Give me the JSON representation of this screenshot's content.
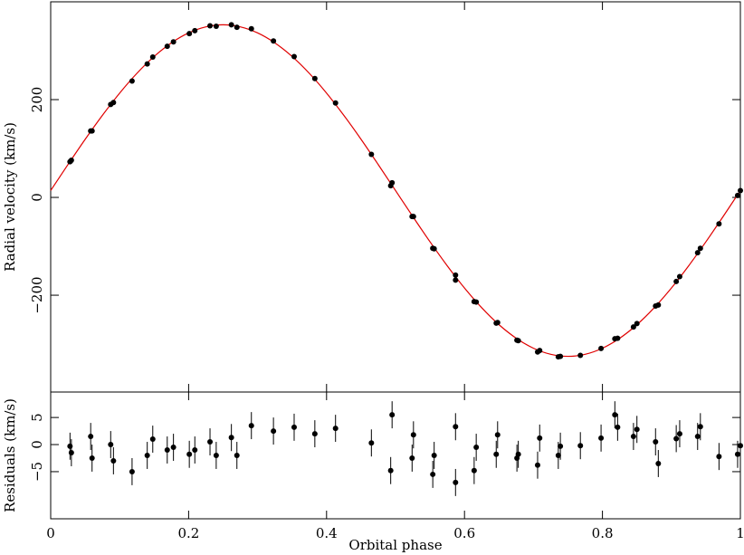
{
  "chart_data": [
    {
      "type": "scatter",
      "ylabel": "Radial velocity (km/s)",
      "color": "#000000",
      "xlim": [
        0,
        1
      ],
      "xticks": [
        0,
        0.2,
        0.4,
        0.6,
        0.8,
        1
      ],
      "ylim": [
        -398,
        400
      ],
      "yticks": [
        {
          "value": -200,
          "label": "−200"
        },
        0,
        200
      ],
      "x": [
        0.028,
        0.03,
        0.058,
        0.06,
        0.087,
        0.091,
        0.118,
        0.14,
        0.148,
        0.169,
        0.178,
        0.201,
        0.209,
        0.231,
        0.24,
        0.262,
        0.27,
        0.291,
        0.323,
        0.353,
        0.383,
        0.413,
        0.465,
        0.493,
        0.495,
        0.524,
        0.526,
        0.554,
        0.556,
        0.587,
        0.587,
        0.614,
        0.617,
        0.646,
        0.648,
        0.676,
        0.678,
        0.706,
        0.709,
        0.736,
        0.739,
        0.768,
        0.798,
        0.818,
        0.822,
        0.845,
        0.85,
        0.877,
        0.881,
        0.907,
        0.912,
        0.938,
        0.942,
        0.969,
        0.996,
        1.0
      ],
      "values": [
        73,
        76,
        136,
        136,
        190,
        194,
        238,
        273,
        287,
        309,
        318,
        335,
        341,
        351,
        350,
        353,
        348,
        345,
        320,
        288,
        243,
        193,
        88,
        24,
        30,
        -39,
        -39,
        -104,
        -105,
        -169,
        -159,
        -213,
        -214,
        -257,
        -256,
        -292,
        -293,
        -316,
        -313,
        -326,
        -325,
        -323,
        -309,
        -289,
        -288,
        -265,
        -258,
        -222,
        -220,
        -172,
        -162,
        -113,
        -104,
        -54,
        4,
        14
      ],
      "model": {
        "color": "#e00000",
        "x": [
          0,
          0.025,
          0.05,
          0.075,
          0.1,
          0.125,
          0.15,
          0.175,
          0.2,
          0.225,
          0.25,
          0.275,
          0.3,
          0.325,
          0.35,
          0.375,
          0.4,
          0.425,
          0.45,
          0.475,
          0.5,
          0.525,
          0.55,
          0.575,
          0.6,
          0.625,
          0.65,
          0.675,
          0.7,
          0.725,
          0.75,
          0.775,
          0.8,
          0.825,
          0.85,
          0.875,
          0.9,
          0.925,
          0.95,
          0.975,
          1
        ],
        "values": [
          14,
          67,
          118.8,
          167.9,
          213.3,
          253.7,
          288.3,
          316,
          336.4,
          348.8,
          353,
          348.8,
          336.4,
          316,
          288.3,
          253.7,
          213.3,
          167.9,
          118.8,
          67,
          14,
          -39,
          -90.8,
          -139.9,
          -185.3,
          -225.7,
          -260.3,
          -288,
          -308.4,
          -320.8,
          -325,
          -320.8,
          -308.4,
          -288,
          -260.3,
          -225.7,
          -185.3,
          -139.9,
          -90.8,
          -39,
          14
        ]
      }
    },
    {
      "type": "scatter",
      "ylabel": "Residuals (km/s)",
      "xlabel": "Orbital phase",
      "color": "#000000",
      "xlim": [
        0,
        1
      ],
      "xticks": [
        0,
        0.2,
        0.4,
        0.6,
        0.8,
        1
      ],
      "ylim": [
        -13.7,
        9.7
      ],
      "yticks": [
        {
          "value": -5,
          "label": "−5"
        },
        0,
        5
      ],
      "x": [
        0.028,
        0.03,
        0.058,
        0.06,
        0.087,
        0.091,
        0.118,
        0.14,
        0.148,
        0.169,
        0.178,
        0.201,
        0.209,
        0.231,
        0.24,
        0.262,
        0.27,
        0.291,
        0.323,
        0.353,
        0.383,
        0.413,
        0.465,
        0.493,
        0.495,
        0.524,
        0.526,
        0.554,
        0.556,
        0.587,
        0.587,
        0.614,
        0.617,
        0.646,
        0.648,
        0.676,
        0.678,
        0.706,
        0.709,
        0.736,
        0.739,
        0.768,
        0.798,
        0.818,
        0.822,
        0.845,
        0.85,
        0.877,
        0.881,
        0.907,
        0.912,
        0.938,
        0.942,
        0.969,
        0.996,
        1.0
      ],
      "values": [
        -0.3,
        -1.5,
        1.5,
        -2.5,
        0,
        -3,
        -5,
        -2,
        1,
        -1,
        -0.5,
        -1.8,
        -1,
        0.5,
        -2,
        1.3,
        -2,
        3.5,
        2.5,
        3.2,
        2,
        3,
        0.3,
        -4.8,
        5.5,
        -2.5,
        1.8,
        -5.5,
        -2,
        -7,
        3.3,
        -4.8,
        -0.5,
        -1.8,
        1.8,
        -2.5,
        -1.8,
        -3.8,
        1.2,
        -2,
        -0.3,
        -0.2,
        1.2,
        5.5,
        3.2,
        1.5,
        2.8,
        0.5,
        -3.5,
        1.1,
        2,
        1.5,
        3.3,
        -2.2,
        -1.8,
        -0.2
      ],
      "errors": [
        2.5,
        2.5,
        2.5,
        2.5,
        2.5,
        2.5,
        2.5,
        2.5,
        2.5,
        2.5,
        2.5,
        2.5,
        2.5,
        2.5,
        2.5,
        2.5,
        2.5,
        2.5,
        2.5,
        2.5,
        2.5,
        2.5,
        2.5,
        2.5,
        2.5,
        2.5,
        2.5,
        2.5,
        2.5,
        2.5,
        2.5,
        2.5,
        2.5,
        2.5,
        2.5,
        2.5,
        2.5,
        2.5,
        2.5,
        2.5,
        2.5,
        2.5,
        2.5,
        2.5,
        2.5,
        2.5,
        2.5,
        2.5,
        2.5,
        2.5,
        2.5,
        2.5,
        2.5,
        2.5,
        2.5,
        2.5
      ]
    }
  ]
}
